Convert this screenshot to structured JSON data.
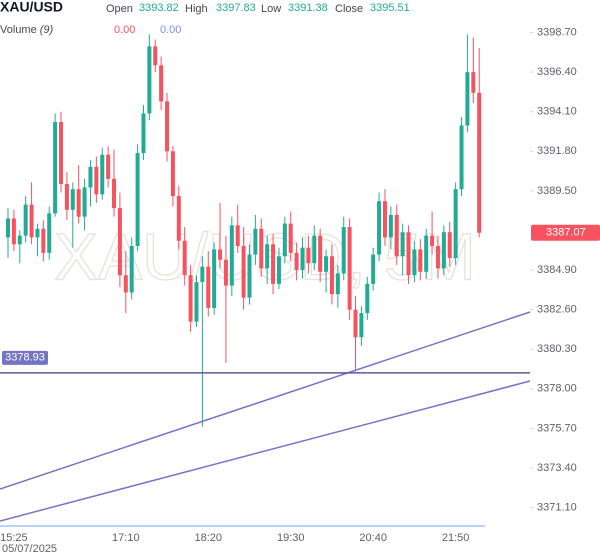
{
  "chart_data": {
    "type": "candlestick",
    "title": "XAU/USD",
    "readout": {
      "labels": [
        "Open",
        "High",
        "Low",
        "Close"
      ],
      "values": [
        3393.82,
        3397.83,
        3391.38,
        3395.51
      ]
    },
    "volume": {
      "label": "Volume",
      "param": "(9)",
      "values": [
        "0.00",
        "0.00"
      ]
    },
    "watermark": "XAU/USD, 5M",
    "up_color": "#22ab94",
    "down_color": "#f7525f",
    "categories": [
      null,
      "15:25",
      null,
      null,
      null,
      null,
      null,
      null,
      null,
      null,
      null,
      null,
      null,
      null,
      null,
      null,
      null,
      null,
      null,
      null,
      "17:10",
      null,
      null,
      null,
      null,
      null,
      null,
      null,
      null,
      null,
      null,
      null,
      null,
      null,
      "18:20",
      null,
      null,
      null,
      null,
      null,
      null,
      null,
      null,
      null,
      null,
      null,
      null,
      null,
      "19:30",
      null,
      null,
      null,
      null,
      null,
      null,
      null,
      null,
      null,
      null,
      null,
      null,
      null,
      "20:40",
      null,
      null,
      null,
      null,
      null,
      null,
      null,
      null,
      null,
      null,
      null,
      null,
      null,
      "21:50",
      null,
      null,
      null,
      null
    ],
    "date_label": "05/07/2025",
    "candles": [
      [
        3386.8,
        3388.5,
        3385.6,
        3387.9
      ],
      [
        3387.9,
        3388.4,
        3386.0,
        3386.4
      ],
      [
        3386.4,
        3387.2,
        3385.3,
        3386.9
      ],
      [
        3386.9,
        3389.2,
        3386.5,
        3388.7
      ],
      [
        3388.7,
        3390.0,
        3386.4,
        3386.8
      ],
      [
        3386.8,
        3387.6,
        3385.7,
        3387.3
      ],
      [
        3387.3,
        3387.8,
        3385.4,
        3385.9
      ],
      [
        3385.9,
        3388.6,
        3385.5,
        3388.2
      ],
      [
        3388.2,
        3394.0,
        3388.0,
        3393.5
      ],
      [
        3393.5,
        3394.1,
        3389.4,
        3389.9
      ],
      [
        3389.9,
        3390.6,
        3387.8,
        3388.4
      ],
      [
        3388.4,
        3390.0,
        3386.2,
        3389.6
      ],
      [
        3389.6,
        3391.0,
        3387.6,
        3388.0
      ],
      [
        3388.0,
        3390.2,
        3387.2,
        3389.7
      ],
      [
        3389.7,
        3391.3,
        3388.6,
        3390.9
      ],
      [
        3390.9,
        3391.5,
        3388.8,
        3389.3
      ],
      [
        3389.3,
        3392.0,
        3389.0,
        3391.6
      ],
      [
        3391.6,
        3392.1,
        3389.7,
        3390.2
      ],
      [
        3390.2,
        3391.9,
        3388.0,
        3388.5
      ],
      [
        3388.5,
        3389.4,
        3383.9,
        3384.6
      ],
      [
        3384.6,
        3386.0,
        3382.4,
        3383.6
      ],
      [
        3383.6,
        3386.8,
        3383.2,
        3386.3
      ],
      [
        3386.3,
        3392.2,
        3386.0,
        3391.7
      ],
      [
        3391.7,
        3394.5,
        3391.3,
        3394.0
      ],
      [
        3394.0,
        3398.6,
        3393.6,
        3397.9
      ],
      [
        3397.9,
        3398.3,
        3396.4,
        3396.8
      ],
      [
        3396.8,
        3397.3,
        3394.2,
        3394.7
      ],
      [
        3394.7,
        3395.2,
        3391.2,
        3391.8
      ],
      [
        3391.8,
        3392.1,
        3388.6,
        3389.2
      ],
      [
        3389.2,
        3389.8,
        3386.1,
        3386.6
      ],
      [
        3386.6,
        3387.4,
        3384.0,
        3384.6
      ],
      [
        3384.6,
        3385.2,
        3381.3,
        3381.9
      ],
      [
        3381.9,
        3384.6,
        3381.6,
        3384.2
      ],
      [
        3384.2,
        3385.7,
        3375.8,
        3385.1
      ],
      [
        3385.1,
        3386.0,
        3382.2,
        3382.7
      ],
      [
        3382.7,
        3386.5,
        3382.3,
        3386.1
      ],
      [
        3386.1,
        3388.8,
        3385.0,
        3385.5
      ],
      [
        3385.5,
        3386.9,
        3379.5,
        3384.0
      ],
      [
        3384.0,
        3388.0,
        3383.4,
        3387.5
      ],
      [
        3387.5,
        3388.7,
        3385.9,
        3386.3
      ],
      [
        3386.3,
        3387.4,
        3382.6,
        3383.3
      ],
      [
        3383.3,
        3386.4,
        3382.9,
        3385.8
      ],
      [
        3385.8,
        3388.1,
        3385.2,
        3387.3
      ],
      [
        3387.3,
        3387.9,
        3384.5,
        3385.0
      ],
      [
        3385.0,
        3386.9,
        3384.1,
        3386.4
      ],
      [
        3386.4,
        3387.0,
        3383.5,
        3384.1
      ],
      [
        3384.1,
        3386.2,
        3383.8,
        3385.7
      ],
      [
        3385.7,
        3388.0,
        3385.3,
        3387.6
      ],
      [
        3387.6,
        3388.3,
        3385.4,
        3385.9
      ],
      [
        3385.9,
        3386.5,
        3384.3,
        3384.9
      ],
      [
        3384.9,
        3386.8,
        3384.4,
        3386.2
      ],
      [
        3386.2,
        3386.9,
        3384.7,
        3385.3
      ],
      [
        3385.3,
        3387.5,
        3384.9,
        3386.9
      ],
      [
        3386.9,
        3387.3,
        3384.2,
        3384.8
      ],
      [
        3384.8,
        3386.1,
        3383.6,
        3385.7
      ],
      [
        3385.7,
        3386.4,
        3382.9,
        3383.5
      ],
      [
        3383.5,
        3385.2,
        3382.7,
        3384.7
      ],
      [
        3384.7,
        3388.0,
        3384.3,
        3387.4
      ],
      [
        3387.4,
        3387.9,
        3382.0,
        3382.6
      ],
      [
        3382.6,
        3383.4,
        3379.0,
        3381.0
      ],
      [
        3381.0,
        3382.8,
        3380.5,
        3382.4
      ],
      [
        3382.4,
        3384.5,
        3382.0,
        3384.1
      ],
      [
        3384.1,
        3386.2,
        3383.7,
        3385.8
      ],
      [
        3385.8,
        3389.4,
        3385.4,
        3388.9
      ],
      [
        3388.9,
        3389.6,
        3386.3,
        3386.8
      ],
      [
        3386.8,
        3388.6,
        3386.1,
        3388.1
      ],
      [
        3388.1,
        3388.7,
        3385.2,
        3385.7
      ],
      [
        3385.7,
        3387.6,
        3384.6,
        3387.1
      ],
      [
        3387.1,
        3387.5,
        3384.1,
        3384.6
      ],
      [
        3384.6,
        3386.6,
        3384.2,
        3386.1
      ],
      [
        3386.1,
        3386.7,
        3384.3,
        3384.8
      ],
      [
        3384.8,
        3387.3,
        3384.4,
        3386.9
      ],
      [
        3386.9,
        3388.3,
        3385.8,
        3386.3
      ],
      [
        3386.3,
        3386.9,
        3384.4,
        3385.0
      ],
      [
        3385.0,
        3387.5,
        3384.6,
        3387.1
      ],
      [
        3387.1,
        3387.7,
        3385.1,
        3385.6
      ],
      [
        3385.6,
        3390.0,
        3385.2,
        3389.6
      ],
      [
        3389.6,
        3393.8,
        3389.2,
        3393.3
      ],
      [
        3393.3,
        3398.6,
        3392.9,
        3396.4
      ],
      [
        3396.4,
        3398.4,
        3394.6,
        3395.2
      ],
      [
        3395.2,
        3397.8,
        3386.8,
        3387.07
      ]
    ],
    "ylim": [
      3369.96,
      3400.22
    ],
    "yticks": [
      {
        "value": 3398.7,
        "label": "3398.70"
      },
      {
        "value": 3396.4,
        "label": "3396.40"
      },
      {
        "value": 3394.1,
        "label": "3394.10"
      },
      {
        "value": 3391.8,
        "label": "3391.80"
      },
      {
        "value": 3389.5,
        "label": "3389.50"
      },
      {
        "value": 3384.9,
        "label": "3384.90"
      },
      {
        "value": 3382.6,
        "label": "3382.60"
      },
      {
        "value": 3380.3,
        "label": "3380.30"
      },
      {
        "value": 3378.0,
        "label": "3378.00"
      },
      {
        "value": 3375.7,
        "label": "3375.70"
      },
      {
        "value": 3373.4,
        "label": "3373.40"
      },
      {
        "value": 3371.1,
        "label": "3371.10"
      }
    ],
    "horizontal_line": 3378.93,
    "last_price": 3387.07
  }
}
